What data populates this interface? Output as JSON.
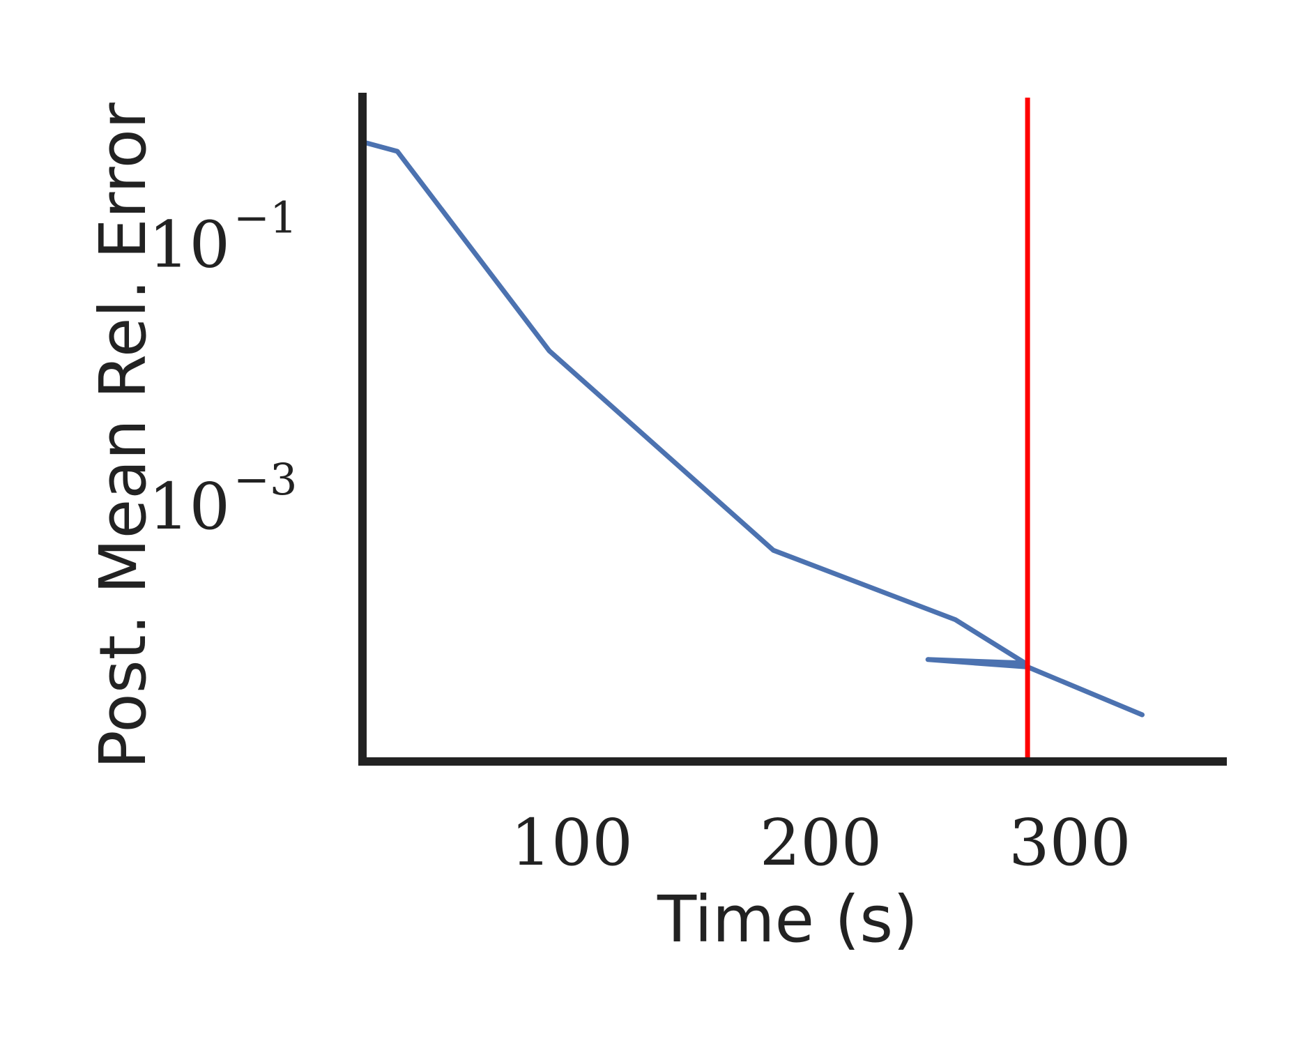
{
  "chart_data": {
    "type": "line",
    "xlabel": "Time (s)",
    "ylabel": "Post. Mean Rel. Error",
    "x_ticks": [
      {
        "value": 100,
        "label": "100"
      },
      {
        "value": 200,
        "label": "200"
      },
      {
        "value": 300,
        "label": "300"
      }
    ],
    "y_ticks": [
      {
        "value": 0.1,
        "base": "10",
        "exponent": "−1"
      },
      {
        "value": 0.001,
        "base": "10",
        "exponent": "−3"
      }
    ],
    "y_scale": "log",
    "xlim": [
      16,
      363
    ],
    "ylim": [
      1.1e-05,
      1.4
    ],
    "grid": false,
    "series": [
      {
        "color": "#4c72b0",
        "x": [
          16,
          30,
          91,
          181,
          254,
          282,
          243,
          283,
          329
        ],
        "y": [
          0.59,
          0.5,
          0.015,
          0.00045,
          0.000133,
          6.2e-05,
          6.6e-05,
          5.8e-05,
          2.5e-05
        ]
      }
    ],
    "vline": {
      "x": 283,
      "color": "#ff0000"
    }
  }
}
